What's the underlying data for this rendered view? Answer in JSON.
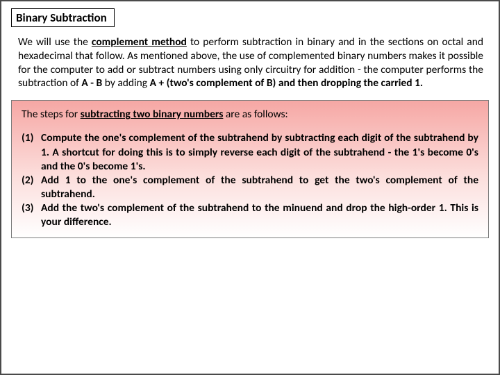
{
  "title": "Binary Subtraction",
  "intro": {
    "pre": "We will use the ",
    "emph1": "complement method",
    "mid": " to perform subtraction in binary and in the sections on octal and hexadecimal that follow. As mentioned above, the use of complemented binary numbers makes it possible for the computer to add or subtract numbers using only circuitry for addition - the computer performs the subtraction of ",
    "b1": "A - B",
    "mid2": " by adding ",
    "b2": "A + (two's complement of B)",
    "mid3": " and then ",
    "b3": "dropping the carried 1."
  },
  "steps_intro": {
    "pre": "The steps for ",
    "emph": "subtracting two binary numbers",
    "post": " are as follows:"
  },
  "steps": {
    "s1": {
      "num": "(1)",
      "text": "Compute the one's complement of the subtrahend by subtracting each digit of the subtrahend by 1. A shortcut for doing this is to simply reverse each digit of the subtrahend - the 1's become 0's and the 0's become 1's."
    },
    "s2": {
      "num": "(2)",
      "text": "Add 1 to the one's complement of the subtrahend to get the two's complement of the subtrahend."
    },
    "s3": {
      "num": "(3)",
      "text": "Add the two's complement of the subtrahend to the minuend and drop the high-order 1. This is your difference."
    }
  },
  "colors": {
    "border_outer": "#4a4a4a",
    "title_border": "#000000",
    "box_border": "#7a7a7a",
    "grad_top": "#f6a7a4",
    "grad_mid": "#fcdedc",
    "grad_bot": "#ffffff",
    "text": "#000000"
  }
}
